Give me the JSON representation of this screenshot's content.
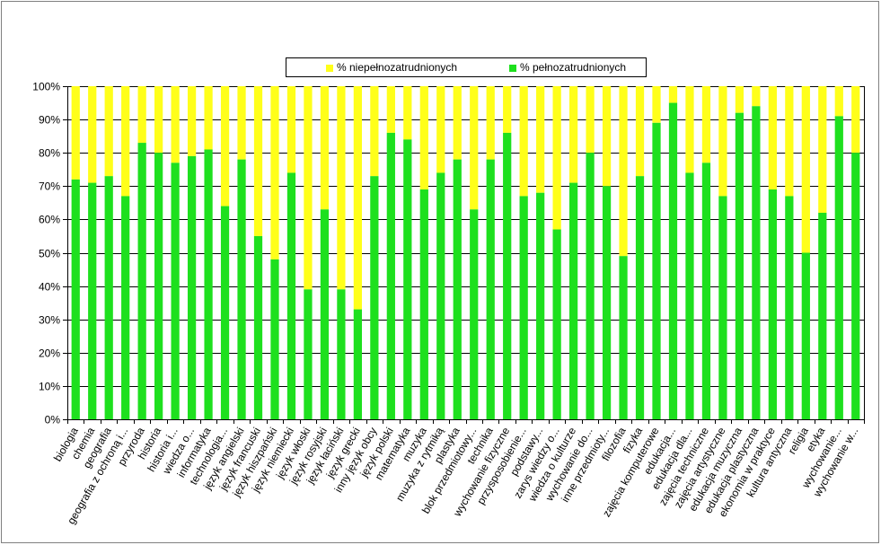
{
  "legend": {
    "partial_label": "% niepełnozatrudnionych",
    "full_label": "% pełnozatrudnionych"
  },
  "colors": {
    "full": "#1ee01e",
    "partial": "#ffff1a",
    "grid": "#000000"
  },
  "chart_data": {
    "type": "bar",
    "stacked": true,
    "percent_stacked": true,
    "ylim": [
      0,
      100
    ],
    "y_ticks": [
      "0%",
      "10%",
      "20%",
      "30%",
      "40%",
      "50%",
      "60%",
      "70%",
      "80%",
      "90%",
      "100%"
    ],
    "grid": true,
    "legend_position": "top",
    "categories": [
      "biologia",
      "chemia",
      "geografia",
      "geografia z ochroną i...",
      "przyroda",
      "historia",
      "historia i...",
      "wiedza o...",
      "informatyka",
      "technologia...",
      "język angielski",
      "język francuski",
      "język hiszpański",
      "język niemiecki",
      "język włoski",
      "język rosyjski",
      "język łaciński",
      "język grecki",
      "inny język obcy",
      "język polski",
      "matematyka",
      "muzyka",
      "muzyka z rytmiką",
      "plastyka",
      "blok przedmiotowy...",
      "technika",
      "wychowanie fizyczne",
      "przysposobienie...",
      "podstawy...",
      "zarys wiedzy o...",
      "wiedza o kulturze",
      "wychowanie do...",
      "inne przedmioty...",
      "filozofia",
      "fizyka",
      "zajęcia komputerowe",
      "edukacja...",
      "edukacja dla...",
      "zajęcia techniczne",
      "zajęcia artystyczne",
      "edukacja muzyczna",
      "edukacja plastyczna",
      "ekonomia w praktyce",
      "kultura antyczna",
      "religia",
      "etyka",
      "wychowanie...",
      "wychowanie w..."
    ],
    "series": [
      {
        "name": "% pełnozatrudnionych",
        "values": [
          72,
          71,
          73,
          67,
          83,
          80,
          77,
          79,
          81,
          64,
          78,
          55,
          48,
          74,
          39,
          63,
          39,
          33,
          73,
          86,
          84,
          69,
          74,
          78,
          63,
          78,
          86,
          67,
          68,
          57,
          71,
          80,
          70,
          49,
          73,
          89,
          95,
          74,
          77,
          67,
          92,
          94,
          69,
          67,
          50,
          62,
          91,
          80
        ]
      },
      {
        "name": "% niepełnozatrudnionych",
        "values": [
          28,
          29,
          27,
          33,
          17,
          20,
          23,
          21,
          19,
          36,
          22,
          45,
          52,
          26,
          61,
          37,
          61,
          67,
          27,
          14,
          16,
          31,
          26,
          22,
          37,
          22,
          14,
          33,
          32,
          43,
          29,
          20,
          30,
          51,
          27,
          11,
          5,
          26,
          23,
          33,
          8,
          6,
          31,
          33,
          50,
          38,
          9,
          20
        ]
      }
    ]
  }
}
